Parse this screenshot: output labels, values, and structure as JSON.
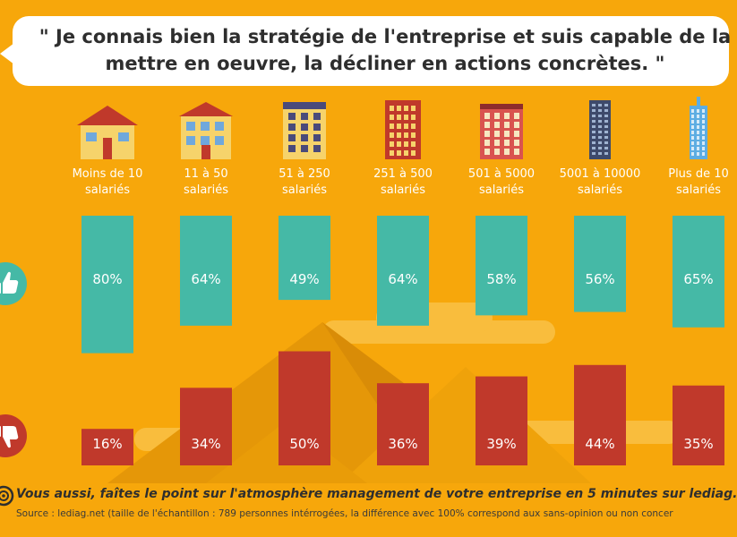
{
  "quote": {
    "line1": "\" Je connais bien la stratégie de l'entreprise et suis capable de la",
    "line2": "mettre en oeuvre, la décliner en actions concrètes. \""
  },
  "icons": {
    "positive": "thumbs-up-icon",
    "negative": "thumbs-down-icon",
    "buildings": [
      "house-icon",
      "small-building-icon",
      "apartment-icon",
      "tall-apartment-icon",
      "brick-building-icon",
      "skyscraper-icon",
      "glass-tower-icon"
    ],
    "footer": "target-icon"
  },
  "colors": {
    "background": "#F7A70B",
    "positive": "#45B9A6",
    "negative": "#C0392B",
    "text_on_bar": "#ffffff"
  },
  "chart_data": {
    "type": "bar",
    "categories": [
      [
        "Moins de 10",
        "salariés"
      ],
      [
        "11 à 50",
        "salariés"
      ],
      [
        "51 à 250",
        "salariés"
      ],
      [
        "251 à 500",
        "salariés"
      ],
      [
        "501 à 5000",
        "salariés"
      ],
      [
        "5001 à 10000",
        "salariés"
      ],
      [
        "Plus de 10",
        "salariés"
      ]
    ],
    "series": [
      {
        "values": [
          80,
          64,
          49,
          64,
          58,
          56,
          65
        ],
        "labels": [
          "80%",
          "64%",
          "49%",
          "64%",
          "58%",
          "56%",
          "65%"
        ]
      },
      {
        "values": [
          16,
          34,
          50,
          36,
          39,
          44,
          35
        ],
        "labels": [
          "16%",
          "34%",
          "50%",
          "36%",
          "39%",
          "44%",
          "35%"
        ]
      }
    ],
    "ylim": [
      0,
      100
    ]
  },
  "footer": {
    "cta": "Vous aussi, faîtes le point sur l'atmosphère management de votre entreprise en 5 minutes sur lediag.",
    "source": "Source : lediag.net (taille de l'échantillon : 789 personnes intérrogées, la différence avec 100% correspond aux sans-opinion ou non concer"
  }
}
